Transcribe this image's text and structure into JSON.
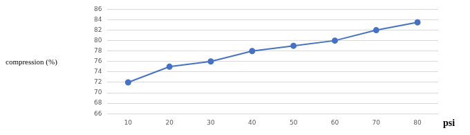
{
  "chart_data": {
    "type": "line",
    "y_label": "compression (%)",
    "x_label": "psi",
    "categories": [
      "10",
      "20",
      "30",
      "40",
      "50",
      "60",
      "70",
      "80"
    ],
    "values": [
      72,
      75,
      76,
      78,
      79,
      80,
      82,
      83.5
    ],
    "color": "#4472c4",
    "marker": "circle",
    "line_style": "solid",
    "ylim": [
      66,
      86
    ],
    "yticks": [
      66,
      68,
      70,
      72,
      74,
      76,
      78,
      80,
      82,
      84,
      86
    ],
    "grid": true
  }
}
